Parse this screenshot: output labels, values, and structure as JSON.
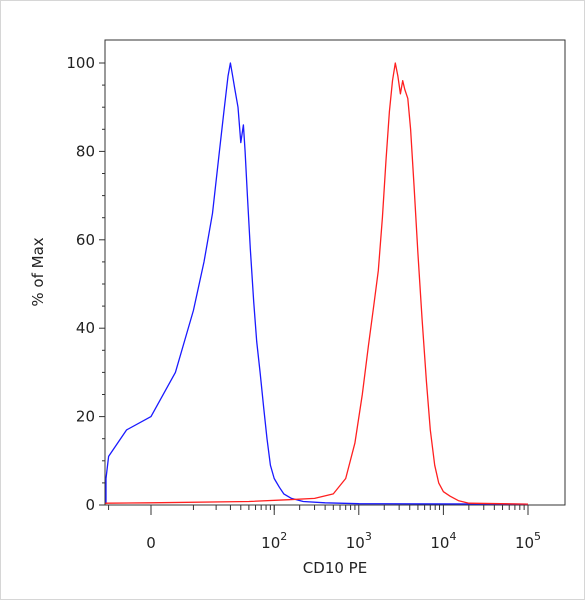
{
  "chart_data": {
    "type": "line",
    "title": "",
    "xlabel": "CD10 PE",
    "ylabel": "% of Max",
    "x_scale": "biexponential",
    "ylim": [
      0,
      100
    ],
    "yticks": [
      {
        "value": 0,
        "label": "0"
      },
      {
        "value": 20,
        "label": "20"
      },
      {
        "value": 40,
        "label": "40"
      },
      {
        "value": 60,
        "label": "60"
      },
      {
        "value": 80,
        "label": "80"
      },
      {
        "value": 100,
        "label": "100"
      }
    ],
    "xticks": [
      {
        "value": 0,
        "base": "0",
        "exp": ""
      },
      {
        "value": 100,
        "base": "10",
        "exp": "2"
      },
      {
        "value": 1000,
        "base": "10",
        "exp": "3"
      },
      {
        "value": 10000,
        "base": "10",
        "exp": "4"
      },
      {
        "value": 100000,
        "base": "10",
        "exp": "5"
      }
    ],
    "grid": false,
    "legend": false,
    "series": [
      {
        "color": "#1a1aff",
        "points": [
          [
            -200,
            0.5
          ],
          [
            -100,
            1
          ],
          [
            -50,
            2
          ],
          [
            -20,
            6
          ],
          [
            -10,
            11
          ],
          [
            -5,
            17
          ],
          [
            0,
            20
          ],
          [
            5,
            30
          ],
          [
            10,
            44
          ],
          [
            14,
            55
          ],
          [
            18,
            66
          ],
          [
            22,
            80
          ],
          [
            25,
            89
          ],
          [
            28,
            97
          ],
          [
            30,
            100
          ],
          [
            32,
            97
          ],
          [
            34,
            94
          ],
          [
            37,
            90
          ],
          [
            40,
            82
          ],
          [
            43,
            86
          ],
          [
            45,
            80
          ],
          [
            48,
            70
          ],
          [
            52,
            58
          ],
          [
            57,
            46
          ],
          [
            62,
            37
          ],
          [
            68,
            30
          ],
          [
            75,
            22
          ],
          [
            82,
            15
          ],
          [
            90,
            9
          ],
          [
            100,
            6
          ],
          [
            115,
            4
          ],
          [
            130,
            2.5
          ],
          [
            160,
            1.5
          ],
          [
            220,
            0.8
          ],
          [
            400,
            0.5
          ],
          [
            1000,
            0.3
          ],
          [
            100000,
            0.2
          ]
        ]
      },
      {
        "color": "#ff2020",
        "points": [
          [
            -200,
            0.2
          ],
          [
            -50,
            0.4
          ],
          [
            0,
            0.5
          ],
          [
            50,
            0.8
          ],
          [
            150,
            1.2
          ],
          [
            300,
            1.5
          ],
          [
            500,
            2.5
          ],
          [
            700,
            6
          ],
          [
            900,
            14
          ],
          [
            1100,
            25
          ],
          [
            1300,
            36
          ],
          [
            1500,
            45
          ],
          [
            1700,
            53
          ],
          [
            1900,
            65
          ],
          [
            2100,
            78
          ],
          [
            2300,
            89
          ],
          [
            2500,
            96
          ],
          [
            2700,
            100
          ],
          [
            2900,
            97
          ],
          [
            3100,
            93
          ],
          [
            3300,
            96
          ],
          [
            3500,
            94
          ],
          [
            3800,
            92
          ],
          [
            4100,
            85
          ],
          [
            4500,
            72
          ],
          [
            5000,
            57
          ],
          [
            5600,
            42
          ],
          [
            6300,
            28
          ],
          [
            7000,
            17
          ],
          [
            7900,
            9
          ],
          [
            8800,
            5
          ],
          [
            10000,
            3
          ],
          [
            12000,
            2
          ],
          [
            15000,
            1
          ],
          [
            20000,
            0.4
          ],
          [
            100000,
            0.2
          ]
        ]
      }
    ]
  }
}
